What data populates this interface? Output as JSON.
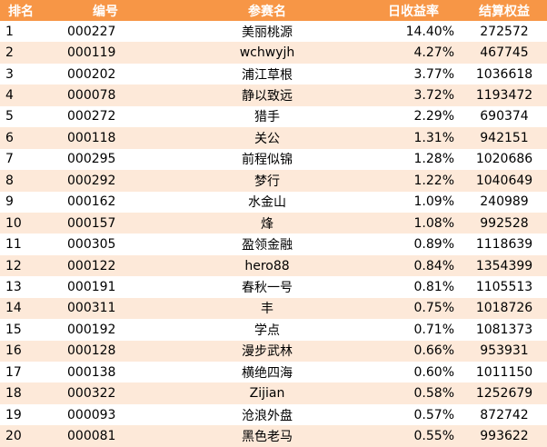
{
  "header": {
    "rank": "排名",
    "id": "编号",
    "name": "参赛名",
    "daily_return": "日收益率",
    "settled_equity": "结算权益"
  },
  "rows": [
    {
      "rank": "1",
      "id": "000227",
      "name": "美丽桃源",
      "daily_return": "14.40%",
      "settled_equity": "272572"
    },
    {
      "rank": "2",
      "id": "000119",
      "name": "wchwyjh",
      "daily_return": "4.27%",
      "settled_equity": "467745"
    },
    {
      "rank": "3",
      "id": "000202",
      "name": "浦江草根",
      "daily_return": "3.77%",
      "settled_equity": "1036618"
    },
    {
      "rank": "4",
      "id": "000078",
      "name": "静以致远",
      "daily_return": "3.72%",
      "settled_equity": "1193472"
    },
    {
      "rank": "5",
      "id": "000272",
      "name": "猎手",
      "daily_return": "2.29%",
      "settled_equity": "690374"
    },
    {
      "rank": "6",
      "id": "000118",
      "name": "关公",
      "daily_return": "1.31%",
      "settled_equity": "942151"
    },
    {
      "rank": "7",
      "id": "000295",
      "name": "前程似锦",
      "daily_return": "1.28%",
      "settled_equity": "1020686"
    },
    {
      "rank": "8",
      "id": "000292",
      "name": "梦行",
      "daily_return": "1.22%",
      "settled_equity": "1040649"
    },
    {
      "rank": "9",
      "id": "000162",
      "name": "水金山",
      "daily_return": "1.09%",
      "settled_equity": "240989"
    },
    {
      "rank": "10",
      "id": "000157",
      "name": "烽",
      "daily_return": "1.08%",
      "settled_equity": "992528"
    },
    {
      "rank": "11",
      "id": "000305",
      "name": "盈领金融",
      "daily_return": "0.89%",
      "settled_equity": "1118639"
    },
    {
      "rank": "12",
      "id": "000122",
      "name": "hero88",
      "daily_return": "0.84%",
      "settled_equity": "1354399"
    },
    {
      "rank": "13",
      "id": "000191",
      "name": "春秋一号",
      "daily_return": "0.81%",
      "settled_equity": "1105513"
    },
    {
      "rank": "14",
      "id": "000311",
      "name": "丰",
      "daily_return": "0.75%",
      "settled_equity": "1018726"
    },
    {
      "rank": "15",
      "id": "000192",
      "name": "学点",
      "daily_return": "0.71%",
      "settled_equity": "1081373"
    },
    {
      "rank": "16",
      "id": "000128",
      "name": "漫步武林",
      "daily_return": "0.66%",
      "settled_equity": "953931"
    },
    {
      "rank": "17",
      "id": "000138",
      "name": "横绝四海",
      "daily_return": "0.60%",
      "settled_equity": "1011150"
    },
    {
      "rank": "18",
      "id": "000322",
      "name": "Zijian",
      "daily_return": "0.58%",
      "settled_equity": "1252679"
    },
    {
      "rank": "19",
      "id": "000093",
      "name": "沧浪外盘",
      "daily_return": "0.57%",
      "settled_equity": "872742"
    },
    {
      "rank": "20",
      "id": "000081",
      "name": "黑色老马",
      "daily_return": "0.55%",
      "settled_equity": "993622"
    }
  ],
  "colors": {
    "header_bg": "#f79646",
    "header_text": "#ffffff",
    "row_alt_bg": "#fde9d9",
    "row_bg": "#ffffff"
  }
}
